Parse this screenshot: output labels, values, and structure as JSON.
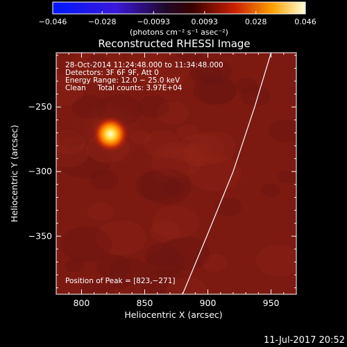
{
  "chart_data": {
    "type": "heatmap",
    "title": "Reconstructed RHESSI Image",
    "xlabel": "Heliocentric X (arcsec)",
    "ylabel": "Heliocentric Y (arcsec)",
    "xlim": [
      780,
      970
    ],
    "ylim": [
      -395,
      -208
    ],
    "x_ticks": [
      800,
      850,
      900,
      950
    ],
    "y_ticks": [
      -250,
      -300,
      -350
    ],
    "colorbar": {
      "range": [
        -0.046,
        0.046
      ],
      "tick_values": [
        -0.046,
        -0.028,
        -0.0093,
        0.0093,
        0.028,
        0.046
      ],
      "tick_labels": [
        "−0.046",
        "−0.028",
        "−0.0093",
        "0.0093",
        "0.028",
        "0.046"
      ],
      "unit_label": "(photons cm⁻² s⁻¹ asec⁻²)"
    },
    "annotations": [
      "28-Oct-2014 11:24:48.000 to 11:34:48.000",
      "Detectors: 3F 6F 9F, Att 0",
      "Energy Range: 12.0 − 25.0 keV",
      "Clean     Total counts: 3.97E+04"
    ],
    "peak_label": "Position of Peak = [823,−271]",
    "peak": [
      823,
      -271
    ],
    "limb_curve": [
      [
        880,
        -395
      ],
      [
        900,
        -348
      ],
      [
        920,
        -300
      ],
      [
        937,
        -250
      ],
      [
        950,
        -208
      ]
    ],
    "footer_date": "11-Jul-2017 20:52"
  }
}
